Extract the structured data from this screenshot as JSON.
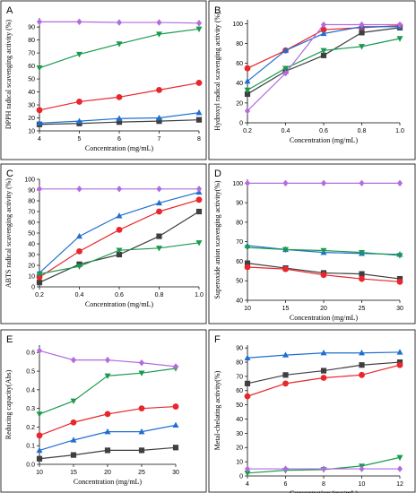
{
  "chart_data": [
    {
      "type": "line",
      "panel_label": "A",
      "xlabel": "Concentration (mg/mL)",
      "ylabel": "DPPH radical scavenging activity (%)",
      "x": [
        4,
        5,
        6,
        7,
        8
      ],
      "xticks": [
        "4",
        "5",
        "6",
        "7",
        "8"
      ],
      "xlim": [
        4,
        8
      ],
      "yticks": [
        "10",
        "20",
        "30",
        "40",
        "50",
        "60",
        "70",
        "80",
        "90"
      ],
      "ylim": [
        10,
        97
      ],
      "series": [
        {
          "color": "#3f3f3f",
          "marker": "square",
          "values": [
            15.0,
            15.7,
            16.8,
            17.5,
            18.5
          ]
        },
        {
          "color": "#e8262b",
          "marker": "circle",
          "values": [
            26.0,
            32.5,
            36.0,
            41.5,
            47.0
          ]
        },
        {
          "color": "#1f6fd0",
          "marker": "triangle-up",
          "values": [
            16.0,
            17.5,
            19.5,
            20.0,
            24.0
          ]
        },
        {
          "color": "#1a9a4e",
          "marker": "triangle-down",
          "values": [
            58.5,
            69.0,
            77.0,
            84.5,
            88.5
          ]
        },
        {
          "color": "#b36be0",
          "marker": "diamond",
          "values": [
            94.0,
            94.0,
            93.5,
            93.5,
            93.0
          ]
        }
      ]
    },
    {
      "type": "line",
      "panel_label": "B",
      "xlabel": "Concentration (mg/mL)",
      "ylabel": "Hydroxyl radical scavenging activity (%)",
      "x": [
        0.2,
        0.4,
        0.6,
        0.8,
        1.0
      ],
      "xticks": [
        "0.2",
        "0.4",
        "0.6",
        "0.8",
        "1.0"
      ],
      "xlim": [
        0.2,
        1.0
      ],
      "yticks": [
        "0",
        "20",
        "40",
        "60",
        "80",
        "100"
      ],
      "ylim": [
        0,
        104
      ],
      "series": [
        {
          "color": "#3f3f3f",
          "marker": "square",
          "values": [
            29,
            52,
            68,
            91,
            96
          ]
        },
        {
          "color": "#e8262b",
          "marker": "circle",
          "values": [
            55,
            73,
            94,
            96,
            98
          ]
        },
        {
          "color": "#1f6fd0",
          "marker": "triangle-up",
          "values": [
            42,
            73,
            90,
            97,
            97
          ]
        },
        {
          "color": "#1a9a4e",
          "marker": "triangle-down",
          "values": [
            33,
            55,
            73,
            77,
            85
          ]
        },
        {
          "color": "#b36be0",
          "marker": "diamond",
          "values": [
            12,
            50,
            99,
            99,
            99
          ]
        }
      ]
    },
    {
      "type": "line",
      "panel_label": "C",
      "xlabel": "Concentration (mg/mL)",
      "ylabel": "ABTS radical scavenging activity (%)",
      "x": [
        0.2,
        0.4,
        0.6,
        0.8,
        1.0
      ],
      "xticks": [
        "0.2",
        "0.4",
        "0.6",
        "0.8",
        "1.0"
      ],
      "xlim": [
        0.2,
        1.0
      ],
      "yticks": [
        "0",
        "10",
        "20",
        "30",
        "40",
        "50",
        "60",
        "70",
        "80",
        "90",
        "100"
      ],
      "ylim": [
        0,
        100
      ],
      "series": [
        {
          "color": "#3f3f3f",
          "marker": "square",
          "values": [
            4,
            21,
            30,
            47,
            70
          ]
        },
        {
          "color": "#e8262b",
          "marker": "circle",
          "values": [
            9,
            33,
            53,
            70,
            81
          ]
        },
        {
          "color": "#1f6fd0",
          "marker": "triangle-up",
          "values": [
            13,
            47,
            66,
            78,
            88
          ]
        },
        {
          "color": "#1a9a4e",
          "marker": "triangle-down",
          "values": [
            12,
            19,
            34,
            36,
            41
          ]
        },
        {
          "color": "#b36be0",
          "marker": "diamond",
          "values": [
            91,
            91,
            91,
            91,
            91
          ]
        }
      ]
    },
    {
      "type": "line",
      "panel_label": "D",
      "xlabel": "Concentration (mg/mL)",
      "ylabel": "Superoxide anion scavenging activity(%)",
      "x": [
        10,
        15,
        20,
        25,
        30
      ],
      "xticks": [
        "10",
        "15",
        "20",
        "25",
        "30"
      ],
      "xlim": [
        10,
        30
      ],
      "yticks": [
        "40",
        "50",
        "60",
        "70",
        "80",
        "90",
        "100"
      ],
      "ylim": [
        40,
        102
      ],
      "series": [
        {
          "color": "#3f3f3f",
          "marker": "square",
          "values": [
            59,
            56.5,
            54,
            53.5,
            51
          ]
        },
        {
          "color": "#e8262b",
          "marker": "circle",
          "values": [
            57,
            56,
            53,
            51,
            49.5
          ]
        },
        {
          "color": "#1f6fd0",
          "marker": "triangle-up",
          "values": [
            68,
            66,
            64.5,
            64,
            63.5
          ]
        },
        {
          "color": "#1a9a4e",
          "marker": "triangle-down",
          "values": [
            67,
            66,
            65.5,
            64.5,
            63
          ]
        },
        {
          "color": "#b36be0",
          "marker": "diamond",
          "values": [
            100,
            100,
            100,
            100,
            100
          ]
        }
      ]
    },
    {
      "type": "line",
      "panel_label": "E",
      "xlabel": "Concentration (mg/mL)",
      "ylabel": "Reducing capacity(Abs)",
      "x": [
        10,
        15,
        20,
        25,
        30
      ],
      "xticks": [
        "10",
        "15",
        "20",
        "25",
        "30"
      ],
      "xlim": [
        10,
        30
      ],
      "yticks": [
        "0.0",
        "0.1",
        "0.2",
        "0.3",
        "0.4",
        "0.5",
        "0.6"
      ],
      "ylim": [
        0,
        0.64
      ],
      "series": [
        {
          "color": "#3f3f3f",
          "marker": "square",
          "values": [
            0.03,
            0.05,
            0.075,
            0.075,
            0.09
          ]
        },
        {
          "color": "#e8262b",
          "marker": "circle",
          "values": [
            0.155,
            0.225,
            0.27,
            0.3,
            0.31
          ]
        },
        {
          "color": "#1f6fd0",
          "marker": "triangle-up",
          "values": [
            0.075,
            0.13,
            0.175,
            0.175,
            0.21
          ]
        },
        {
          "color": "#1a9a4e",
          "marker": "triangle-down",
          "values": [
            0.27,
            0.34,
            0.475,
            0.49,
            0.515
          ]
        },
        {
          "color": "#b36be0",
          "marker": "diamond",
          "values": [
            0.61,
            0.56,
            0.56,
            0.545,
            0.525
          ]
        }
      ]
    },
    {
      "type": "line",
      "panel_label": "F",
      "xlabel": "Concentration (mg/mL)",
      "ylabel": "Metal-chelating activity(%)",
      "x": [
        4,
        6,
        8,
        10,
        12
      ],
      "xticks": [
        "4",
        "6",
        "8",
        "10",
        "12"
      ],
      "xlim": [
        4,
        12
      ],
      "yticks": [
        "0",
        "10",
        "20",
        "30",
        "40",
        "50",
        "60",
        "70",
        "80",
        "90"
      ],
      "ylim": [
        0,
        92
      ],
      "series": [
        {
          "color": "#3f3f3f",
          "marker": "square",
          "values": [
            65,
            71,
            74,
            78,
            80
          ]
        },
        {
          "color": "#e8262b",
          "marker": "circle",
          "values": [
            56,
            65,
            69,
            71,
            78
          ]
        },
        {
          "color": "#1f6fd0",
          "marker": "triangle-up",
          "values": [
            83,
            85,
            86.5,
            86.5,
            87
          ]
        },
        {
          "color": "#1a9a4e",
          "marker": "triangle-down",
          "values": [
            2,
            4,
            4.5,
            7,
            13
          ]
        },
        {
          "color": "#b36be0",
          "marker": "diamond",
          "values": [
            5,
            5,
            5,
            5,
            5
          ]
        }
      ]
    }
  ]
}
